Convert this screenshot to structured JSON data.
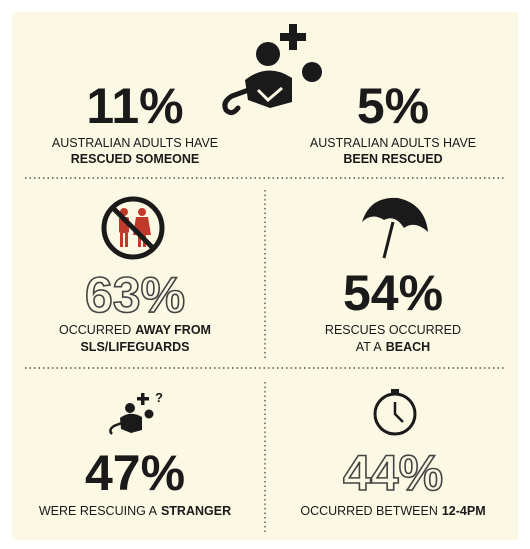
{
  "stats": [
    {
      "value": "11%",
      "caption": [
        "AUSTRALIAN ADULTS HAVE",
        "RESCUED SOMEONE"
      ]
    },
    {
      "value": "5%",
      "caption": [
        "AUSTRALIAN ADULTS HAVE",
        "BEEN RESCUED"
      ]
    },
    {
      "value": "63%",
      "caption": [
        "OCCURRED",
        "AWAY FROM",
        "SLS/LIFEGUARDS"
      ]
    },
    {
      "value": "54%",
      "caption": [
        "RESCUES OCCURRED",
        "AT A",
        "BEACH"
      ]
    },
    {
      "value": "47%",
      "caption": [
        "WERE RESCUING A",
        "STRANGER"
      ]
    },
    {
      "value": "44%",
      "caption": [
        "OCCURRED BETWEEN",
        "12-4PM"
      ]
    }
  ]
}
